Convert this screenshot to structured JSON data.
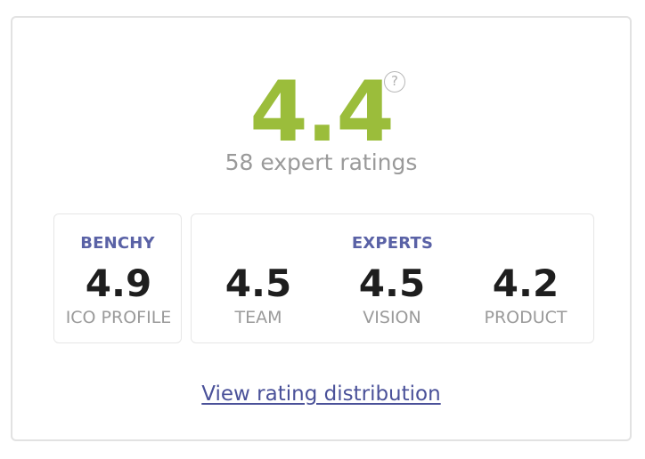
{
  "overall": {
    "score": "4.4",
    "help_icon": "question-icon",
    "help_glyph": "?",
    "ratings_count_text": "58 expert ratings"
  },
  "benchy": {
    "title": "BENCHY",
    "metrics": [
      {
        "value": "4.9",
        "label": "ICO PROFILE"
      }
    ]
  },
  "experts": {
    "title": "EXPERTS",
    "metrics": [
      {
        "value": "4.5",
        "label": "TEAM"
      },
      {
        "value": "4.5",
        "label": "VISION"
      },
      {
        "value": "4.2",
        "label": "PRODUCT"
      }
    ]
  },
  "footer": {
    "link_label": "View rating distribution"
  },
  "colors": {
    "score_green": "#9bbd3b",
    "accent_purple": "#5a62a6",
    "muted_gray": "#9a9a9a"
  }
}
